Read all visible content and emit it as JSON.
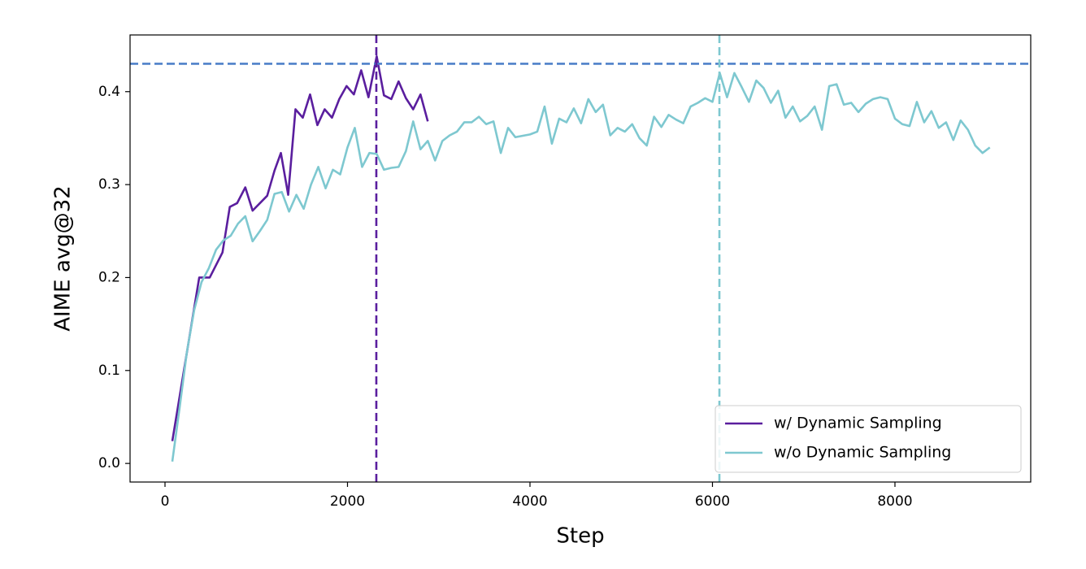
{
  "chart_data": {
    "type": "line",
    "xlabel": "Step",
    "ylabel": "AIME avg@32",
    "xlim": [
      -383,
      9488
    ],
    "ylim": [
      -0.02,
      0.461
    ],
    "xticks": [
      0,
      2000,
      4000,
      6000,
      8000
    ],
    "yticks": [
      {
        "value": 0,
        "label": "0.0"
      },
      0.1,
      0.2,
      0.3,
      0.4
    ],
    "legend": "lower right",
    "hlines": [
      {
        "value": 0.43,
        "color": "#4f81c9"
      }
    ],
    "vlines": [
      {
        "value": 2316,
        "color": "#5a1e9e"
      },
      {
        "value": 6076,
        "color": "#7ec8d0"
      }
    ],
    "series": [
      {
        "name": "w/ Dynamic Sampling",
        "color": "#5a1e9e",
        "x": [
          80,
          375,
          490,
          630,
          710,
          790,
          880,
          960,
          1120,
          1200,
          1270,
          1350,
          1430,
          1510,
          1590,
          1670,
          1750,
          1830,
          1910,
          1990,
          2070,
          2150,
          2230,
          2320,
          2400,
          2480,
          2560,
          2640,
          2720,
          2800,
          2880
        ],
        "values": [
          0.024,
          0.2,
          0.2,
          0.227,
          0.276,
          0.28,
          0.297,
          0.272,
          0.288,
          0.315,
          0.334,
          0.289,
          0.381,
          0.372,
          0.397,
          0.364,
          0.381,
          0.372,
          0.392,
          0.406,
          0.397,
          0.423,
          0.394,
          0.438,
          0.396,
          0.392,
          0.411,
          0.393,
          0.381,
          0.397,
          0.368
        ]
      },
      {
        "name": "w/o Dynamic Sampling",
        "color": "#7ec8d0",
        "x": [
          80,
          160,
          240,
          320,
          400,
          480,
          560,
          640,
          720,
          800,
          880,
          960,
          1040,
          1120,
          1200,
          1280,
          1360,
          1440,
          1520,
          1600,
          1680,
          1760,
          1840,
          1920,
          2000,
          2080,
          2160,
          2240,
          2320,
          2400,
          2480,
          2560,
          2640,
          2720,
          2800,
          2880,
          2960,
          3040,
          3120,
          3200,
          3280,
          3360,
          3440,
          3520,
          3600,
          3680,
          3760,
          3840,
          4000,
          4080,
          4160,
          4240,
          4320,
          4400,
          4480,
          4560,
          4640,
          4720,
          4800,
          4880,
          4960,
          5040,
          5120,
          5200,
          5280,
          5360,
          5440,
          5520,
          5600,
          5680,
          5760,
          5840,
          5920,
          6000,
          6080,
          6160,
          6240,
          6320,
          6400,
          6480,
          6560,
          6640,
          6720,
          6800,
          6880,
          6960,
          7040,
          7120,
          7200,
          7280,
          7360,
          7440,
          7520,
          7600,
          7680,
          7760,
          7840,
          7920,
          8000,
          8080,
          8160,
          8240,
          8320,
          8400,
          8480,
          8560,
          8640,
          8720,
          8800,
          8880,
          8960,
          9040
        ],
        "values": [
          0.002,
          0.06,
          0.12,
          0.165,
          0.195,
          0.21,
          0.23,
          0.24,
          0.245,
          0.258,
          0.266,
          0.239,
          0.25,
          0.262,
          0.29,
          0.292,
          0.271,
          0.289,
          0.274,
          0.3,
          0.319,
          0.296,
          0.316,
          0.311,
          0.34,
          0.361,
          0.319,
          0.334,
          0.333,
          0.316,
          0.318,
          0.319,
          0.336,
          0.368,
          0.338,
          0.347,
          0.326,
          0.347,
          0.353,
          0.357,
          0.367,
          0.367,
          0.373,
          0.365,
          0.368,
          0.334,
          0.361,
          0.351,
          0.354,
          0.357,
          0.384,
          0.344,
          0.371,
          0.367,
          0.382,
          0.366,
          0.392,
          0.378,
          0.386,
          0.353,
          0.361,
          0.357,
          0.365,
          0.35,
          0.342,
          0.373,
          0.362,
          0.375,
          0.37,
          0.366,
          0.384,
          0.388,
          0.393,
          0.389,
          0.42,
          0.394,
          0.42,
          0.405,
          0.389,
          0.412,
          0.404,
          0.388,
          0.401,
          0.372,
          0.384,
          0.368,
          0.374,
          0.384,
          0.359,
          0.406,
          0.408,
          0.386,
          0.388,
          0.378,
          0.387,
          0.392,
          0.394,
          0.392,
          0.371,
          0.365,
          0.363,
          0.389,
          0.367,
          0.379,
          0.361,
          0.367,
          0.348,
          0.369,
          0.359,
          0.342,
          0.334,
          0.34
        ]
      }
    ]
  }
}
